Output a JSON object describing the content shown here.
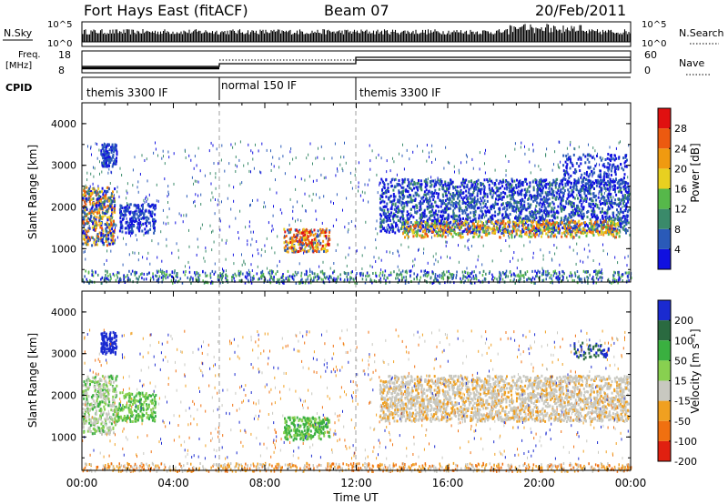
{
  "header": {
    "station": "Fort Hays East (fitACF)",
    "beam": "Beam 07",
    "date": "20/Feb/2011"
  },
  "top_panels": {
    "nsky_label": "N.Sky",
    "nsearch_label": "N.Search",
    "log_tick_high": "10^5",
    "log_tick_low": "10^0",
    "freq_label": "Freq.",
    "freq_unit": "[MHz]",
    "freq_ticks": [
      "18",
      "8"
    ],
    "nave_label": "Nave",
    "nave_ticks": [
      "60",
      "0"
    ],
    "cpid_label": "CPID",
    "cpid_segments": [
      "themis 3300 IF",
      "normal 150 IF",
      "themis 3300 IF"
    ]
  },
  "chart_data": [
    {
      "type": "heatmap",
      "ylabel": "Slant Range [km]",
      "y_ticks": [
        "1000",
        "2000",
        "3000",
        "4000"
      ],
      "ylim": [
        200,
        4500
      ],
      "colorbar_label": "Power [dB]",
      "colorbar_ticks": [
        "4",
        "8",
        "12",
        "16",
        "20",
        "24",
        "28"
      ],
      "colors": [
        "#1010e0",
        "#2a5ab8",
        "#3a8a6a",
        "#56b84a",
        "#e8d020",
        "#f09a10",
        "#ec5a10",
        "#e01010"
      ]
    },
    {
      "type": "heatmap",
      "ylabel": "Velocity [m s-1]",
      "y_axis_label": "Slant Range [km]",
      "y_ticks": [
        "1000",
        "2000",
        "3000",
        "4000"
      ],
      "ylim": [
        200,
        4500
      ],
      "colorbar_label": "Velocity [m s⁻¹]",
      "colorbar_ticks": [
        "200",
        "100",
        "50",
        "15",
        "-15",
        "-50",
        "-100",
        "-200"
      ],
      "colors": [
        "#1a2ad0",
        "#2a6a40",
        "#3ab040",
        "#88d050",
        "#c8c8c0",
        "#f0a020",
        "#f07010",
        "#e02010"
      ]
    }
  ],
  "x_axis": {
    "ticks": [
      "00:00",
      "04:00",
      "08:00",
      "12:00",
      "16:00",
      "20:00",
      "00:00"
    ],
    "label": "Time UT"
  }
}
